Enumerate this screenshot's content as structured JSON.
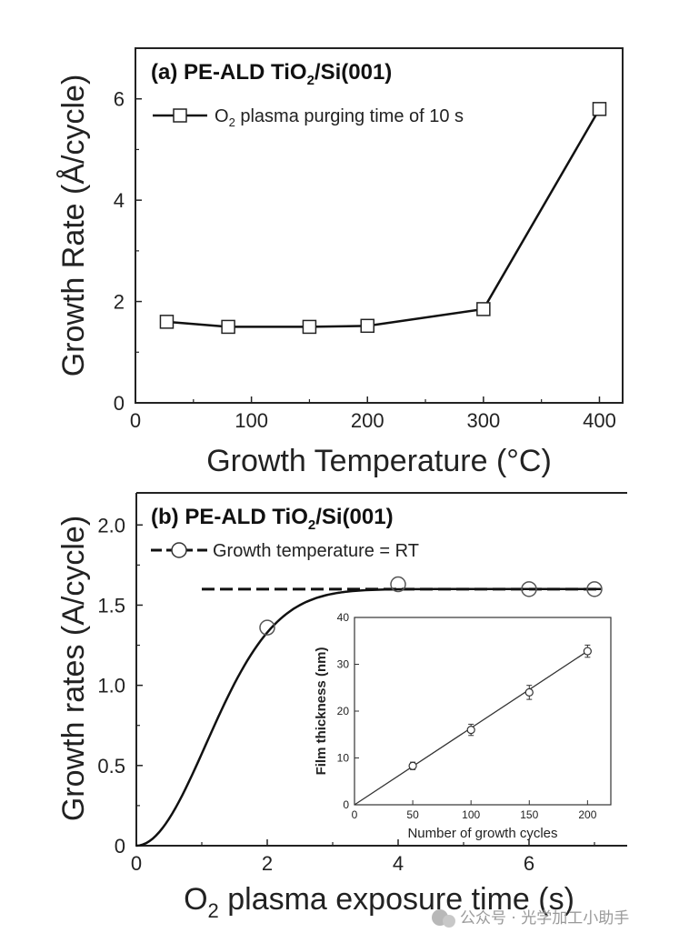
{
  "chart_data": [
    {
      "id": "a",
      "type": "line",
      "title_prefix": "(a) PE-ALD TiO",
      "title_sub": "2",
      "title_suffix": "/Si(001)",
      "xlabel": "Growth Temperature (°C)",
      "ylabel": "Growth Rate (Å/cycle)",
      "xlim": [
        0,
        420
      ],
      "ylim": [
        0,
        7
      ],
      "xticks": [
        "0",
        "100",
        "200",
        "300",
        "400"
      ],
      "yticks": [
        "0",
        "2",
        "4",
        "6"
      ],
      "legend": {
        "pre": "O",
        "sub": "2",
        "post": " plasma purging time of 10 s",
        "marker": "square",
        "line": "solid"
      },
      "series": [
        {
          "name": "O2 plasma purging time of 10 s",
          "marker": "square",
          "x": [
            27,
            80,
            150,
            200,
            300,
            400
          ],
          "y": [
            1.6,
            1.5,
            1.5,
            1.52,
            1.85,
            5.8
          ]
        }
      ]
    },
    {
      "id": "b",
      "type": "scatter",
      "title_prefix": "(b) PE-ALD TiO",
      "title_sub": "2",
      "title_suffix": "/Si(001)",
      "xlabel_pre": "O",
      "xlabel_sub": "2",
      "xlabel_post": " plasma exposure time (s)",
      "ylabel": "Growth rates (A/cycle)",
      "xlim": [
        0,
        7.5
      ],
      "ylim": [
        0,
        2.2
      ],
      "xticks": [
        "0",
        "2",
        "4",
        "6"
      ],
      "yticks": [
        "0",
        "0.5",
        "1.0",
        "1.5",
        "2.0"
      ],
      "legend": {
        "text": "Growth temperature = RT",
        "marker": "circle",
        "line": "dashed"
      },
      "series": [
        {
          "name": "Growth temperature = RT",
          "marker": "circle",
          "x": [
            2,
            4,
            6,
            7
          ],
          "y": [
            1.36,
            1.63,
            1.6,
            1.6
          ]
        }
      ],
      "saturation_level": 1.6,
      "dashed_x_range": [
        1,
        7.1
      ],
      "fit_curve": {
        "type": "saturating",
        "tau": 1.5
      },
      "inset": {
        "type": "scatter",
        "xlabel": "Number of growth cycles",
        "ylabel": "Film thickness (nm)",
        "xlim": [
          0,
          220
        ],
        "ylim": [
          0,
          40
        ],
        "xticks": [
          "0",
          "50",
          "100",
          "150",
          "200"
        ],
        "yticks": [
          "0",
          "10",
          "20",
          "30",
          "40"
        ],
        "x": [
          50,
          100,
          150,
          200
        ],
        "y": [
          8.3,
          16.0,
          24.0,
          32.8
        ],
        "yerr": [
          0.8,
          1.2,
          1.5,
          1.3
        ],
        "fit_line": {
          "x": [
            0,
            200
          ],
          "y": [
            0,
            32.8
          ]
        }
      }
    }
  ],
  "watermark": "公众号 · 光学加工小助手"
}
